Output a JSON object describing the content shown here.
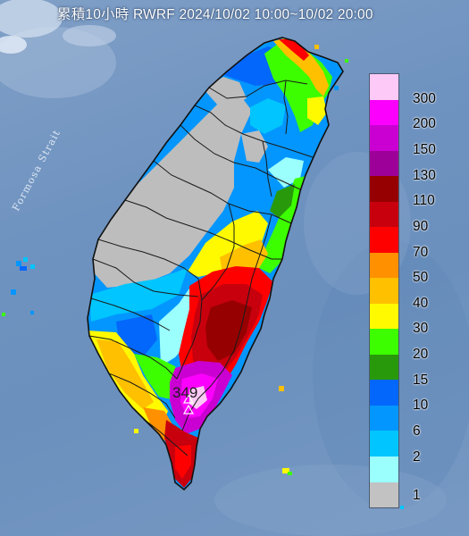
{
  "title": "累積10小時 RWRF 2024/10/02 10:00~10/02 20:00",
  "strait_label": "Formosa Strait",
  "max_value_label": "349",
  "legend": {
    "items": [
      {
        "label": "300",
        "color": "#fdc9f7"
      },
      {
        "label": "200",
        "color": "#fc00fd"
      },
      {
        "label": "150",
        "color": "#ca00d2"
      },
      {
        "label": "130",
        "color": "#9d0099"
      },
      {
        "label": "110",
        "color": "#970000"
      },
      {
        "label": "90",
        "color": "#c8000e"
      },
      {
        "label": "70",
        "color": "#fe0000"
      },
      {
        "label": "50",
        "color": "#ff9000"
      },
      {
        "label": "40",
        "color": "#ffc000"
      },
      {
        "label": "30",
        "color": "#fffa00"
      },
      {
        "label": "20",
        "color": "#3cfe00"
      },
      {
        "label": "15",
        "color": "#29990c"
      },
      {
        "label": "10",
        "color": "#0467fc"
      },
      {
        "label": "6",
        "color": "#0396fe"
      },
      {
        "label": "2",
        "color": "#00c5ff"
      },
      {
        "label": "1",
        "color": "#9bfffe"
      },
      {
        "label": "",
        "color": "#c2c2c2"
      }
    ]
  },
  "colors": {
    "sea": "#7394c1",
    "land_dry": "#bdbdbd",
    "border": "#1a1a1a"
  }
}
